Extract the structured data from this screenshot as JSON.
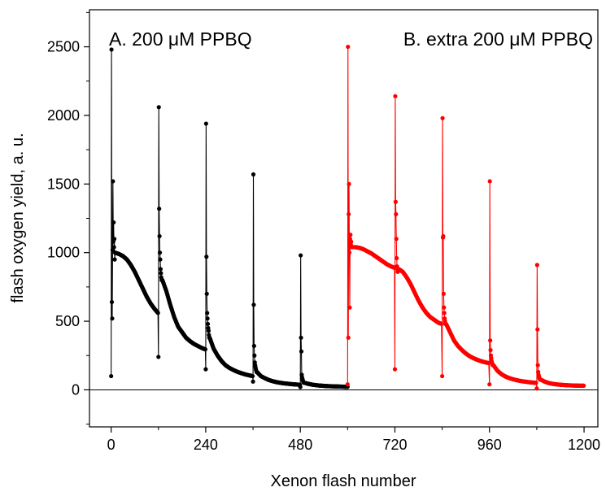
{
  "chart_data": {
    "type": "line",
    "xlabel": "Xenon flash number",
    "ylabel": "flash oxygen yield, a. u.",
    "xlim": [
      -55,
      1235
    ],
    "ylim": [
      -270,
      2770
    ],
    "xticks": [
      0,
      240,
      480,
      720,
      960,
      1200
    ],
    "yticks": [
      0,
      500,
      1000,
      1500,
      2000,
      2500
    ],
    "grid": false,
    "baseline_y": 0,
    "annotations": [
      {
        "id": "A",
        "text": "A. 200 μM PPBQ",
        "placement": "top-left"
      },
      {
        "id": "B",
        "text": "B. extra 200 μM PPBQ",
        "placement": "top-right"
      }
    ],
    "series": [
      {
        "panel": "A",
        "color": "#000000",
        "x_start": 0,
        "x_end": 600,
        "spikes": [
          {
            "x": 0,
            "values": [
              100,
              2480,
              640,
              520,
              1020,
              1520,
              1080,
              1220,
              1040,
              1100,
              950,
              1000
            ]
          },
          {
            "x": 120,
            "values": [
              240,
              2060,
              1320,
              1120,
              1000,
              950,
              880,
              850,
              820,
              800
            ]
          },
          {
            "x": 240,
            "values": [
              150,
              1940,
              970,
              700,
              560,
              520,
              480,
              450,
              430,
              400
            ]
          },
          {
            "x": 360,
            "values": [
              60,
              1570,
              620,
              320,
              250,
              200,
              180,
              165,
              150,
              140
            ]
          },
          {
            "x": 480,
            "values": [
              20,
              980,
              380,
              280,
              110,
              90,
              80,
              70,
              60,
              55
            ]
          }
        ],
        "decay_segments": [
          {
            "x": [
              10,
              20,
              30,
              40,
              50,
              60,
              70,
              80,
              90,
              100,
              110,
              119
            ],
            "y": [
              1000,
              990,
              975,
              950,
              910,
              860,
              800,
              740,
              680,
              630,
              590,
              560
            ]
          },
          {
            "x": [
              130,
              140,
              150,
              160,
              170,
              180,
              190,
              200,
              210,
              220,
              230,
              239
            ],
            "y": [
              800,
              720,
              620,
              530,
              460,
              420,
              380,
              355,
              335,
              320,
              305,
              295
            ]
          },
          {
            "x": [
              250,
              260,
              270,
              280,
              290,
              300,
              310,
              320,
              330,
              340,
              350,
              359
            ],
            "y": [
              380,
              300,
              250,
              210,
              180,
              160,
              145,
              132,
              122,
              113,
              106,
              100
            ]
          },
          {
            "x": [
              370,
              380,
              390,
              400,
              410,
              420,
              430,
              440,
              450,
              460,
              470,
              479
            ],
            "y": [
              130,
              100,
              85,
              72,
              63,
              56,
              51,
              47,
              44,
              41,
              39,
              37
            ]
          },
          {
            "x": [
              490,
              500,
              510,
              520,
              530,
              540,
              550,
              560,
              570,
              580,
              590,
              600
            ],
            "y": [
              52,
              44,
              38,
              34,
              31,
              29,
              27,
              26,
              25,
              24,
              23,
              22
            ]
          }
        ]
      },
      {
        "panel": "B",
        "color": "#ff0000",
        "x_start": 600,
        "x_end": 1200,
        "spikes": [
          {
            "x": 600,
            "values": [
              40,
              2500,
              380,
              1280,
              1500,
              1000,
              600,
              1100,
              1130,
              1060,
              1080
            ]
          },
          {
            "x": 720,
            "values": [
              150,
              2140,
              1370,
              1280,
              1100,
              960,
              900,
              880,
              860
            ]
          },
          {
            "x": 840,
            "values": [
              100,
              1980,
              1110,
              1120,
              700,
              600,
              560,
              520,
              500
            ]
          },
          {
            "x": 960,
            "values": [
              40,
              1520,
              360,
              290,
              250,
              230,
              210,
              200,
              190
            ]
          },
          {
            "x": 1080,
            "values": [
              10,
              910,
              440,
              180,
              130,
              110,
              100,
              90,
              80
            ]
          }
        ],
        "decay_segments": [
          {
            "x": [
              610,
              620,
              630,
              640,
              650,
              660,
              670,
              680,
              690,
              700,
              710,
              719
            ],
            "y": [
              1040,
              1040,
              1035,
              1025,
              1010,
              995,
              975,
              955,
              935,
              915,
              900,
              890
            ]
          },
          {
            "x": [
              730,
              740,
              750,
              760,
              770,
              780,
              790,
              800,
              810,
              820,
              830,
              839
            ],
            "y": [
              880,
              860,
              820,
              770,
              710,
              650,
              600,
              560,
              530,
              510,
              490,
              480
            ]
          },
          {
            "x": [
              850,
              860,
              870,
              880,
              890,
              900,
              910,
              920,
              930,
              940,
              950,
              959
            ],
            "y": [
              480,
              420,
              360,
              320,
              290,
              265,
              245,
              230,
              218,
              208,
              200,
              195
            ]
          },
          {
            "x": [
              970,
              980,
              990,
              1000,
              1010,
              1020,
              1030,
              1040,
              1050,
              1060,
              1070,
              1079
            ],
            "y": [
              180,
              140,
              115,
              98,
              86,
              77,
              70,
              64,
              60,
              56,
              53,
              51
            ]
          },
          {
            "x": [
              1090,
              1100,
              1110,
              1120,
              1130,
              1140,
              1150,
              1160,
              1170,
              1180,
              1190,
              1200
            ],
            "y": [
              75,
              60,
              50,
              44,
              40,
              37,
              35,
              33,
              32,
              31,
              30,
              30
            ]
          }
        ]
      }
    ]
  }
}
